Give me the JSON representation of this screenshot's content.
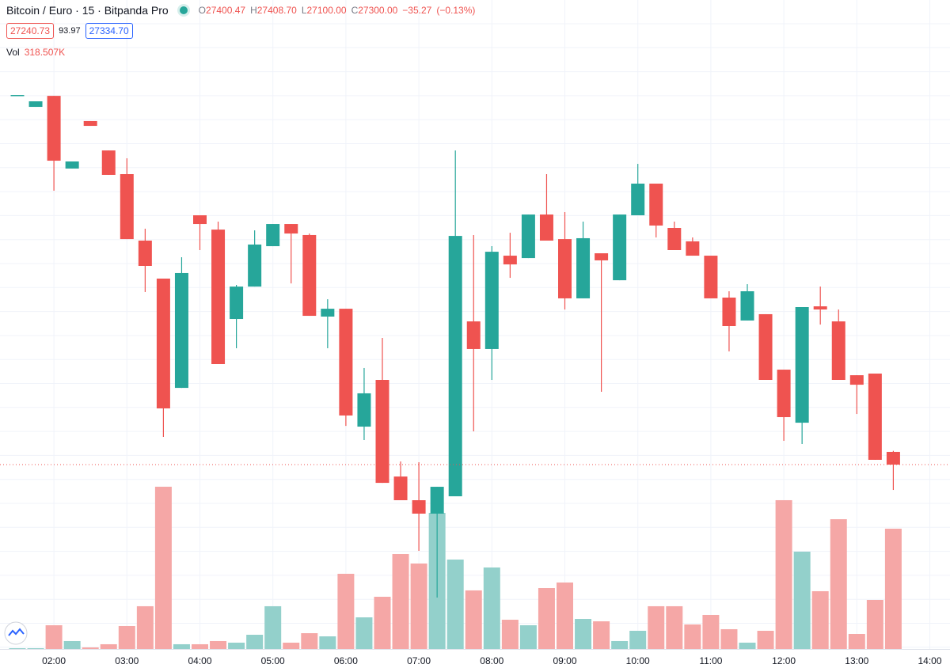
{
  "chart_data": {
    "type": "candlestick",
    "title": "Bitcoin / Euro · 15 · Bitpanda Pro",
    "legend_labels": [
      "O",
      "H",
      "L",
      "C"
    ],
    "last_labels": {
      "open": "27400.47",
      "high": "27408.70",
      "low": "27100.00",
      "close": "27300.00"
    },
    "change": {
      "value": -35.27,
      "label": "−35.27"
    },
    "change_pct": {
      "value": -0.13,
      "label": "(−0.13%)"
    },
    "bid": 27240.73,
    "spread": 93.97,
    "ask": {
      "value": 27334.7,
      "label": "27334.70"
    },
    "up_color": "#26a69a",
    "down_color": "#ef5350",
    "volume_up_color": "#93d0cb",
    "volume_down_color": "#f5a7a6",
    "ylim": [
      25844,
      30969
    ],
    "y2lim": [
      0,
      1718000
    ],
    "xticks": [
      "02:00",
      "03:00",
      "04:00",
      "05:00",
      "06:00",
      "07:00",
      "08:00",
      "09:00",
      "10:00",
      "11:00",
      "12:00",
      "13:00",
      "14:00"
    ],
    "open": [
      30212,
      30125,
      30212,
      29638,
      30013,
      29781,
      29594,
      29069,
      28769,
      27906,
      29269,
      29156,
      28450,
      28706,
      29025,
      29200,
      29113,
      28469,
      28531,
      27600,
      27969,
      27206,
      27019,
      26913,
      27050,
      28431,
      28213,
      28950,
      28931,
      29275,
      29081,
      28613,
      28969,
      28756,
      29269,
      29519,
      29169,
      29063,
      28950,
      28619,
      28438,
      28488,
      28050,
      27631,
      28550,
      28431,
      28006,
      28019,
      27400.47
    ],
    "high": [
      30219,
      30169,
      30212,
      29694,
      30013,
      29781,
      29719,
      29163,
      28769,
      28938,
      29269,
      29219,
      28719,
      29150,
      29200,
      29200,
      29125,
      28606,
      28531,
      28063,
      28300,
      27325,
      27319,
      27125,
      29781,
      29113,
      29025,
      29131,
      29275,
      29594,
      29294,
      29219,
      28969,
      29275,
      29675,
      29519,
      29219,
      29094,
      28950,
      28669,
      28725,
      28488,
      28050,
      28544,
      28706,
      28525,
      28006,
      28019,
      27408.7
    ],
    "low": [
      30212,
      30125,
      29463,
      29638,
      29975,
      29588,
      29081,
      28663,
      27519,
      27906,
      28994,
      28094,
      28219,
      28706,
      29025,
      28731,
      28475,
      28219,
      27606,
      27494,
      27156,
      27019,
      26619,
      26250,
      27050,
      27563,
      27969,
      28775,
      28931,
      29069,
      28525,
      28613,
      27875,
      28756,
      29269,
      29094,
      28994,
      28950,
      28613,
      28194,
      28438,
      27969,
      27488,
      27463,
      28406,
      27969,
      27700,
      27338,
      27100
    ],
    "close": [
      30219,
      30169,
      29700,
      29694,
      29975,
      29588,
      29081,
      28869,
      27744,
      28813,
      29200,
      28094,
      28706,
      29038,
      29200,
      29125,
      28475,
      28531,
      27688,
      27863,
      27156,
      27019,
      26913,
      27125,
      29106,
      28213,
      28981,
      28881,
      29275,
      29069,
      28613,
      29088,
      28913,
      29275,
      29519,
      29188,
      28994,
      28950,
      28613,
      28394,
      28669,
      27969,
      27675,
      28544,
      28525,
      27969,
      27931,
      27338,
      27300
    ],
    "volume": {
      "name": "Vol",
      "last_label": "318.507K",
      "values": [
        2100,
        2100,
        62900,
        21000,
        4200,
        12600,
        60800,
        113200,
        429600,
        12600,
        12600,
        21000,
        16800,
        37700,
        113200,
        16800,
        41900,
        33500,
        199100,
        83800,
        138300,
        251400,
        226300,
        360400,
        236800,
        155100,
        215800,
        77500,
        62900,
        161300,
        176000,
        79600,
        73300,
        21000,
        48200,
        113200,
        113200,
        65000,
        90100,
        52400,
        16800,
        48200,
        393900,
        257700,
        153000,
        343600,
        39800,
        129900,
        318507
      ]
    }
  }
}
